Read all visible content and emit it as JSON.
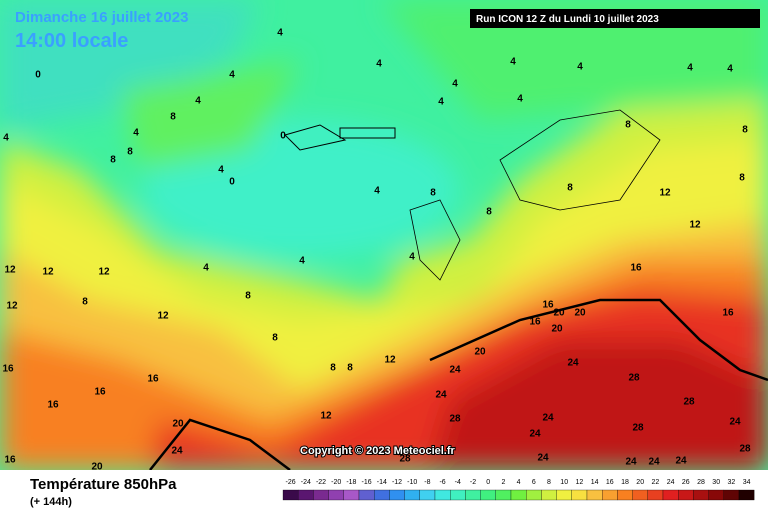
{
  "header": {
    "date": "Dimanche 16 juillet 2023",
    "time": "14:00 locale",
    "run": "Run ICON 12 Z du Lundi 10 juillet 2023"
  },
  "copyright": "Copyright © 2023 Meteociel.fr",
  "footer": {
    "title": "Température 850hPa",
    "lead": "(+ 144h)"
  },
  "scale": {
    "labels": [
      "-26",
      "-24",
      "-22",
      "-20",
      "-18",
      "-16",
      "-14",
      "-12",
      "-10",
      "-8",
      "-6",
      "-4",
      "-2",
      "0",
      "2",
      "4",
      "6",
      "8",
      "10",
      "12",
      "14",
      "16",
      "18",
      "20",
      "22",
      "24",
      "26",
      "28",
      "30",
      "32",
      "34"
    ],
    "colors": [
      "#3a0a4a",
      "#5a1670",
      "#7a2a90",
      "#9040b0",
      "#a858c8",
      "#6060d0",
      "#4070e0",
      "#3090f0",
      "#30b0f0",
      "#40d0f0",
      "#40e8e0",
      "#40f0c0",
      "#40f0a0",
      "#40f080",
      "#50f060",
      "#70f040",
      "#a0f040",
      "#d0f040",
      "#f0f040",
      "#f8e040",
      "#f8c040",
      "#f8a030",
      "#f88020",
      "#f06020",
      "#e84020",
      "#e02020",
      "#c81818",
      "#a81010",
      "#880808",
      "#600404",
      "#200000"
    ]
  },
  "map_labels": [
    "4",
    "4",
    "4",
    "4",
    "4",
    "4",
    "4",
    "4",
    "4",
    "4",
    "4",
    "4",
    "4",
    "4",
    "4",
    "4",
    "4",
    "4",
    "8",
    "8",
    "8",
    "8",
    "8",
    "8",
    "8",
    "8",
    "8",
    "8",
    "8",
    "8",
    "8",
    "8",
    "12",
    "12",
    "12",
    "12",
    "12",
    "12",
    "12",
    "12",
    "12",
    "16",
    "16",
    "16",
    "16",
    "16",
    "16",
    "16",
    "16",
    "16",
    "20",
    "20",
    "20",
    "20",
    "20",
    "20",
    "24",
    "24",
    "24",
    "24",
    "24",
    "24",
    "24",
    "24",
    "24",
    "24",
    "24",
    "28",
    "28",
    "28",
    "28",
    "28",
    "28",
    "0",
    "0",
    "0"
  ]
}
